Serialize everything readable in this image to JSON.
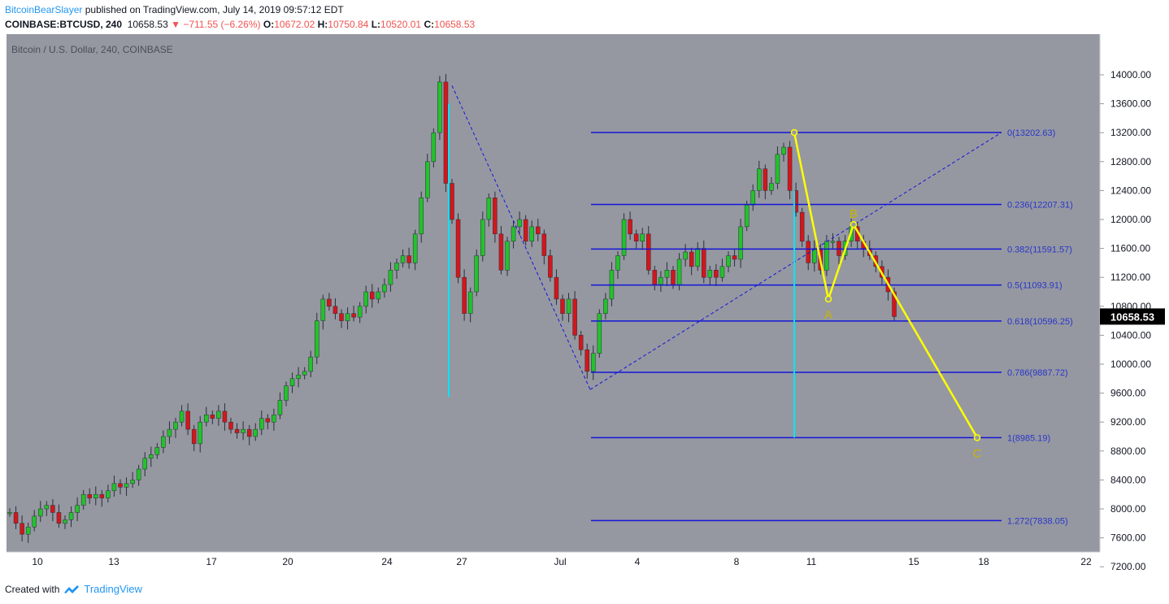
{
  "header": {
    "author": "BitcoinBearSlayer",
    "published_text": "published on TradingView.com, July 14, 2019 09:57:12 EDT",
    "symbol": "COINBASE:BTCUSD, 240",
    "last": "10658.53",
    "arrow": "▼",
    "change": "−711.55 (−6.26%)",
    "o_label": "O:",
    "o_value": "10672.02",
    "h_label": "H:",
    "h_value": "10750.84",
    "l_label": "L:",
    "l_value": "10520.01",
    "c_label": "C:",
    "c_value": "10658.53"
  },
  "footer": {
    "created_with": "Created with",
    "brand": "TradingView",
    "logo_icon": "tradingview-logo-icon"
  },
  "chart_data": {
    "type": "candlestick",
    "title": "Bitcoin / U.S. Dollar, 240, COINBASE",
    "price_axis_ticks": [
      "14000.00",
      "13600.00",
      "13200.00",
      "12800.00",
      "12400.00",
      "12000.00",
      "11600.00",
      "11200.00",
      "10800.00",
      "10400.00",
      "10000.00",
      "9600.00",
      "9200.00",
      "8800.00",
      "8400.00",
      "8000.00",
      "7600.00",
      "7200.00"
    ],
    "ylim": [
      7100,
      14300
    ],
    "time_axis_labels": [
      "10",
      "13",
      "17",
      "20",
      "24",
      "27",
      "Jul",
      "4",
      "8",
      "11",
      "15",
      "18",
      "22"
    ],
    "last_price_label": "10658.53",
    "colors": {
      "background": "#9598a1",
      "up": "#22c32b",
      "down": "#d3161b",
      "fib": "#1515d8",
      "wave": "#ffff00",
      "vertical": "#00e5ff",
      "last_price_bg": "#000000",
      "fib_label": "#2a36c9",
      "wave_label": "#c8b400"
    },
    "price_path": [
      [
        7950,
        7900
      ],
      [
        7800,
        7750
      ],
      [
        7650,
        7600
      ],
      [
        7750,
        7700
      ],
      [
        7900,
        7850
      ],
      [
        8000,
        7950
      ],
      [
        8050,
        8000
      ],
      [
        7950,
        7900
      ],
      [
        7800,
        7780
      ],
      [
        7850,
        7820
      ],
      [
        7950,
        7930
      ],
      [
        8050,
        8030
      ],
      [
        8200,
        8180
      ],
      [
        8150,
        8120
      ],
      [
        8200,
        8150
      ],
      [
        8150,
        8100
      ],
      [
        8250,
        8220
      ],
      [
        8350,
        8300
      ],
      [
        8300,
        8280
      ],
      [
        8350,
        8320
      ],
      [
        8400,
        8380
      ],
      [
        8550,
        8520
      ],
      [
        8700,
        8680
      ],
      [
        8750,
        8730
      ],
      [
        8850,
        8820
      ],
      [
        9000,
        8970
      ],
      [
        9100,
        9050
      ],
      [
        9200,
        9150
      ],
      [
        9350,
        9300
      ],
      [
        9100,
        9050
      ],
      [
        8900,
        8850
      ],
      [
        9200,
        9150
      ],
      [
        9300,
        9250
      ],
      [
        9250,
        9200
      ],
      [
        9350,
        9300
      ],
      [
        9200,
        9150
      ],
      [
        9100,
        9050
      ],
      [
        9050,
        9000
      ],
      [
        9100,
        9080
      ],
      [
        9000,
        8980
      ],
      [
        9100,
        9070
      ],
      [
        9250,
        9230
      ],
      [
        9200,
        9180
      ],
      [
        9300,
        9280
      ],
      [
        9500,
        9470
      ],
      [
        9700,
        9680
      ],
      [
        9800,
        9780
      ],
      [
        9850,
        9830
      ],
      [
        9900,
        9880
      ],
      [
        10100,
        10050
      ],
      [
        10600,
        10550
      ],
      [
        10900,
        10850
      ],
      [
        10800,
        10780
      ],
      [
        10700,
        10680
      ],
      [
        10600,
        10580
      ],
      [
        10700,
        10690
      ],
      [
        10650,
        10640
      ],
      [
        10800,
        10790
      ],
      [
        11000,
        10950
      ],
      [
        10900,
        10880
      ],
      [
        11000,
        10980
      ],
      [
        11100,
        11050
      ],
      [
        11300,
        11250
      ],
      [
        11400,
        11350
      ],
      [
        11500,
        11450
      ],
      [
        11400,
        11380
      ],
      [
        11800,
        11750
      ],
      [
        12300,
        12250
      ],
      [
        12800,
        12750
      ],
      [
        13200,
        13150
      ],
      [
        13900,
        13850
      ],
      [
        12500,
        12450
      ],
      [
        12000,
        11950
      ],
      [
        11200,
        11100
      ],
      [
        10700,
        10600
      ],
      [
        11000,
        10950
      ],
      [
        11500,
        11450
      ],
      [
        12000,
        11950
      ],
      [
        12300,
        12250
      ],
      [
        11800,
        11750
      ],
      [
        11300,
        11250
      ],
      [
        11700,
        11650
      ],
      [
        11900,
        11880
      ],
      [
        12000,
        11950
      ],
      [
        11700,
        11650
      ],
      [
        11900,
        11880
      ],
      [
        11800,
        11780
      ],
      [
        11500,
        11450
      ],
      [
        11200,
        11150
      ],
      [
        10900,
        10850
      ],
      [
        10700,
        10680
      ],
      [
        10900,
        10880
      ],
      [
        10400,
        10350
      ],
      [
        10200,
        10150
      ],
      [
        9900,
        9850
      ],
      [
        10150,
        10130
      ],
      [
        10700,
        10650
      ],
      [
        10900,
        10850
      ],
      [
        11300,
        11250
      ],
      [
        11500,
        11450
      ],
      [
        12000,
        11950
      ],
      [
        11800,
        11750
      ],
      [
        11700,
        11680
      ],
      [
        11800,
        11780
      ],
      [
        11300,
        11250
      ],
      [
        11100,
        11050
      ],
      [
        11200,
        11180
      ],
      [
        11300,
        11250
      ],
      [
        11100,
        11080
      ],
      [
        11450,
        11400
      ],
      [
        11550,
        11500
      ],
      [
        11350,
        11300
      ],
      [
        11600,
        11550
      ],
      [
        11200,
        11150
      ],
      [
        11300,
        11250
      ],
      [
        11200,
        11180
      ],
      [
        11350,
        11300
      ],
      [
        11500,
        11450
      ],
      [
        11450,
        11430
      ],
      [
        11900,
        11850
      ],
      [
        12200,
        12150
      ],
      [
        12400,
        12350
      ],
      [
        12700,
        12650
      ],
      [
        12400,
        12350
      ],
      [
        12500,
        12450
      ],
      [
        12900,
        12850
      ],
      [
        13000,
        12950
      ],
      [
        12400,
        12350
      ],
      [
        12100,
        11950
      ],
      [
        11700,
        11600
      ],
      [
        11400,
        11350
      ],
      [
        11600,
        11550
      ],
      [
        11300,
        11250
      ],
      [
        11700,
        11650
      ],
      [
        11700,
        11680
      ],
      [
        11500,
        11450
      ],
      [
        11700,
        11650
      ],
      [
        11900,
        11850
      ],
      [
        11700,
        11650
      ],
      [
        11600,
        11550
      ],
      [
        11500,
        11450
      ],
      [
        11350,
        11300
      ],
      [
        11200,
        11150
      ],
      [
        11000,
        10950
      ],
      [
        10658,
        10658
      ]
    ],
    "fib_levels": [
      {
        "label": "0(13202.63)",
        "value": 13202.63
      },
      {
        "label": "0.236(12207.31)",
        "value": 12207.31
      },
      {
        "label": "0.382(11591.57)",
        "value": 11591.57
      },
      {
        "label": "0.5(11093.91)",
        "value": 11093.91
      },
      {
        "label": "0.618(10596.25)",
        "value": 10596.25
      },
      {
        "label": "0.786(9887.72)",
        "value": 9887.72
      },
      {
        "label": "1(8985.19)",
        "value": 8985.19
      },
      {
        "label": "1.272(7838.05)",
        "value": 7838.05
      }
    ],
    "wave_points": [
      {
        "label": "",
        "value": 13202.63
      },
      {
        "label": "A",
        "value": 10900
      },
      {
        "label": "B",
        "value": 11930
      },
      {
        "label": "C",
        "value": 8985
      }
    ]
  }
}
